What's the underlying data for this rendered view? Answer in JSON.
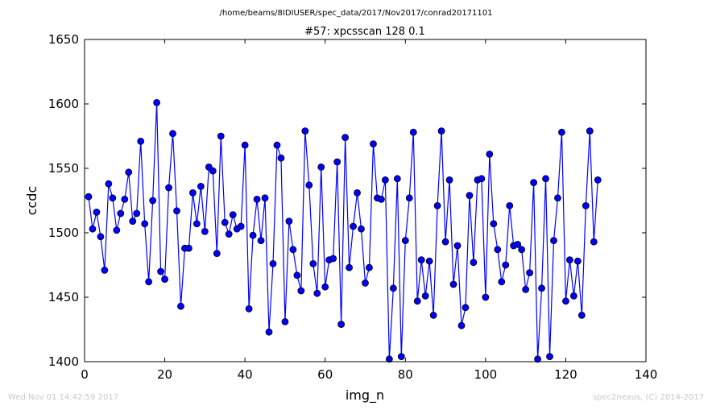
{
  "figure": {
    "suptitle": "/home/beams/8IDIUSER/spec_data/2017/Nov2017/conrad20171101",
    "timestamp": "Wed Nov 01 14:42:59 2017",
    "credit": "spec2nexus, (C) 2014-2017"
  },
  "colors": {
    "line": "#0000ff",
    "marker_fill": "#0000ff",
    "marker_edge": "#000000"
  },
  "chart_data": {
    "type": "line",
    "title": "#57: xpcsscan 128 0.1",
    "xlabel": "img_n",
    "ylabel": "ccdc",
    "xlim": [
      0,
      140
    ],
    "ylim": [
      1400,
      1650
    ],
    "xticks": [
      "0",
      "20",
      "40",
      "60",
      "80",
      "100",
      "120",
      "140"
    ],
    "yticks": [
      "1400",
      "1450",
      "1500",
      "1550",
      "1600",
      "1650"
    ],
    "grid": false,
    "series": [
      {
        "x": [
          1,
          2,
          3,
          4,
          5,
          6,
          7,
          8,
          9,
          10,
          11,
          12,
          13,
          14,
          15,
          16,
          17,
          18,
          19,
          20,
          21,
          22,
          23,
          24,
          25,
          26,
          27,
          28,
          29,
          30,
          31,
          32,
          33,
          34,
          35,
          36,
          37,
          38,
          39,
          40,
          41,
          42,
          43,
          44,
          45,
          46,
          47,
          48,
          49,
          50,
          51,
          52,
          53,
          54,
          55,
          56,
          57,
          58,
          59,
          60,
          61,
          62,
          63,
          64,
          65,
          66,
          67,
          68,
          69,
          70,
          71,
          72,
          73,
          74,
          75,
          76,
          77,
          78,
          79,
          80,
          81,
          82,
          83,
          84,
          85,
          86,
          87,
          88,
          89,
          90,
          91,
          92,
          93,
          94,
          95,
          96,
          97,
          98,
          99,
          100,
          101,
          102,
          103,
          104,
          105,
          106,
          107,
          108,
          109,
          110,
          111,
          112,
          113,
          114,
          115,
          116,
          117,
          118,
          119,
          120,
          121,
          122,
          123,
          124,
          125,
          126,
          127,
          128
        ],
        "y": [
          1528,
          1503,
          1516,
          1497,
          1471,
          1538,
          1527,
          1502,
          1515,
          1526,
          1547,
          1509,
          1515,
          1571,
          1507,
          1462,
          1525,
          1601,
          1470,
          1464,
          1535,
          1577,
          1517,
          1443,
          1488,
          1488,
          1531,
          1507,
          1536,
          1501,
          1551,
          1548,
          1484,
          1575,
          1508,
          1499,
          1514,
          1503,
          1505,
          1568,
          1441,
          1498,
          1526,
          1494,
          1527,
          1423,
          1476,
          1568,
          1558,
          1431,
          1509,
          1487,
          1467,
          1455,
          1579,
          1537,
          1476,
          1453,
          1551,
          1458,
          1479,
          1480,
          1555,
          1429,
          1574,
          1473,
          1505,
          1531,
          1503,
          1461,
          1473,
          1569,
          1527,
          1526,
          1541,
          1402,
          1457,
          1542,
          1404,
          1494,
          1527,
          1578,
          1447,
          1479,
          1451,
          1478,
          1436,
          1521,
          1579,
          1493,
          1541,
          1460,
          1490,
          1428,
          1442,
          1529,
          1477,
          1541,
          1542,
          1450,
          1561,
          1507,
          1487,
          1462,
          1475,
          1521,
          1490,
          1491,
          1487,
          1456,
          1469,
          1539,
          1402,
          1457,
          1542,
          1404,
          1494,
          1527,
          1578,
          1447,
          1479,
          1451,
          1478,
          1436,
          1521,
          1579,
          1493,
          1541
        ]
      }
    ]
  }
}
